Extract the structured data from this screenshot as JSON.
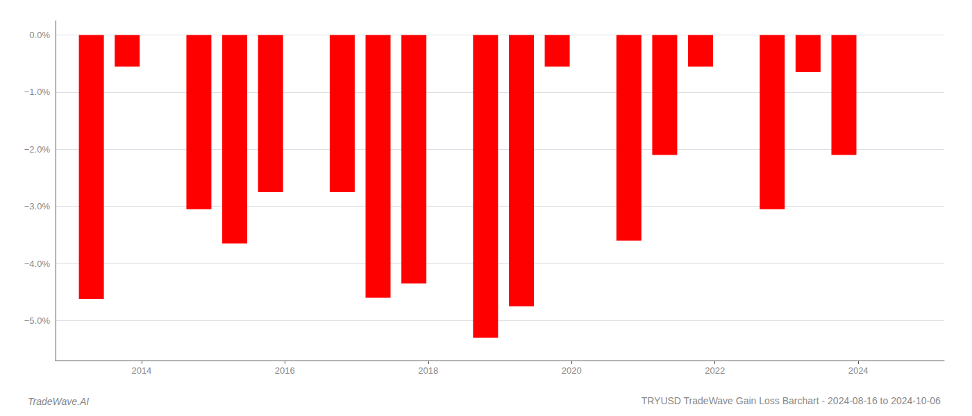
{
  "chart_data": {
    "type": "bar",
    "title": "TRYUSD TradeWave Gain Loss Barchart - 2024-08-16 to 2024-10-06",
    "annotations": [
      "TradeWave.AI"
    ],
    "x": [
      2013.3,
      2013.8,
      2014.8,
      2015.3,
      2015.8,
      2016.8,
      2017.3,
      2017.8,
      2018.8,
      2019.3,
      2019.8,
      2020.8,
      2021.3,
      2021.8,
      2022.8,
      2023.3,
      2023.8
    ],
    "values": [
      -4.62,
      -0.55,
      -3.05,
      -3.65,
      -2.75,
      -2.75,
      -4.6,
      -4.35,
      -5.3,
      -4.75,
      -0.55,
      -3.6,
      -2.1,
      -0.55,
      -3.05,
      -0.65,
      -2.1
    ],
    "color": "#ff0000",
    "xlim": [
      2012.8,
      2025.2
    ],
    "xticks": [
      2014,
      2016,
      2018,
      2020,
      2022,
      2024
    ],
    "ylim": [
      -5.7,
      0.25
    ],
    "yticks": [
      {
        "value": 0.0,
        "label": "0.0%"
      },
      {
        "value": -1.0,
        "label": "−1.0%"
      },
      {
        "value": -2.0,
        "label": "−2.0%"
      },
      {
        "value": -3.0,
        "label": "−3.0%"
      },
      {
        "value": -4.0,
        "label": "−4.0%"
      },
      {
        "value": -5.0,
        "label": "−5.0%"
      }
    ],
    "grid": true
  }
}
